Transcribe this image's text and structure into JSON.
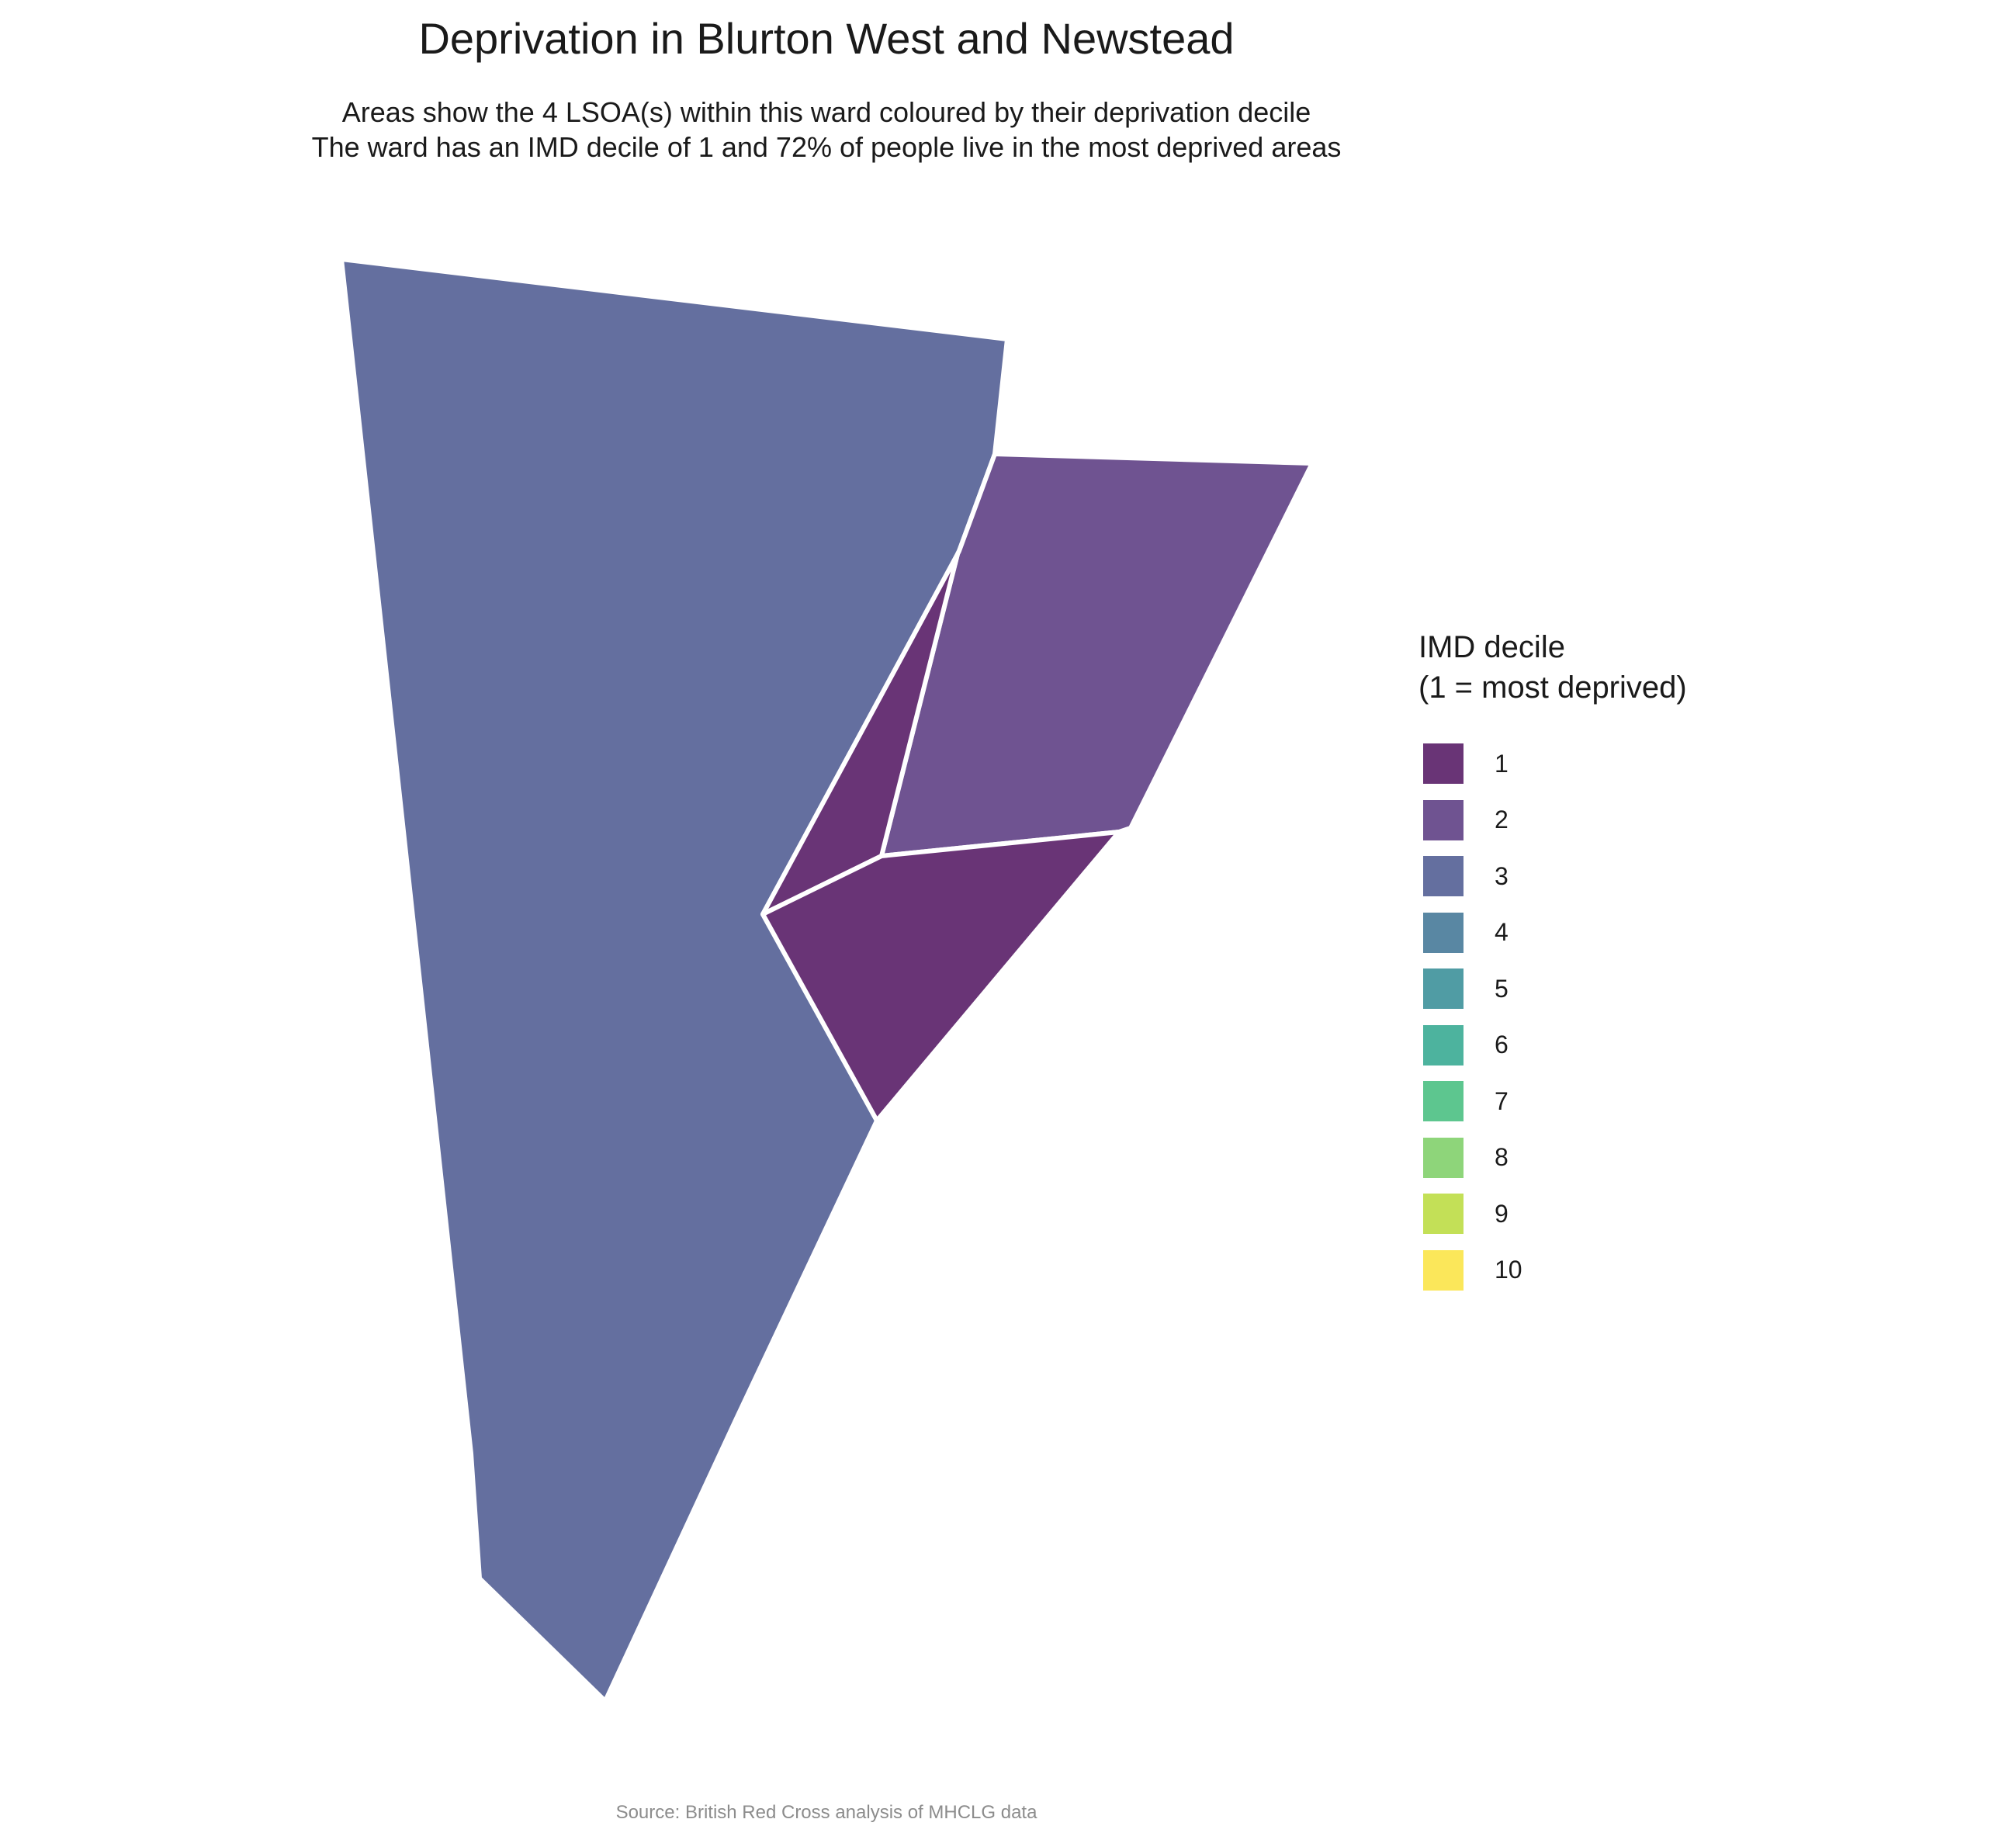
{
  "title": "Deprivation in Blurton West and Newstead",
  "subtitle_line1": "Areas show the 4 LSOA(s) within this ward coloured by their deprivation decile",
  "subtitle_line2": "The ward has an IMD decile of 1 and 72% of people live in the most deprived areas",
  "legend": {
    "title_line1": "IMD decile",
    "title_line2": "(1 = most deprived)",
    "items": [
      {
        "label": "1",
        "color": "#693476"
      },
      {
        "label": "2",
        "color": "#6f5391"
      },
      {
        "label": "3",
        "color": "#646f9f"
      },
      {
        "label": "4",
        "color": "#5987a3"
      },
      {
        "label": "5",
        "color": "#509ca4"
      },
      {
        "label": "6",
        "color": "#4db39e"
      },
      {
        "label": "7",
        "color": "#5dc68f"
      },
      {
        "label": "8",
        "color": "#8ed57a"
      },
      {
        "label": "9",
        "color": "#c3e057"
      },
      {
        "label": "10",
        "color": "#fbe75a"
      }
    ]
  },
  "areas": [
    {
      "decile": 3,
      "color": "#646f9f"
    },
    {
      "decile": 2,
      "color": "#6f5391"
    },
    {
      "decile": 1,
      "color": "#693476"
    },
    {
      "decile": 1,
      "color": "#693476"
    }
  ],
  "caption": "Source: British Red Cross analysis of MHCLG data"
}
